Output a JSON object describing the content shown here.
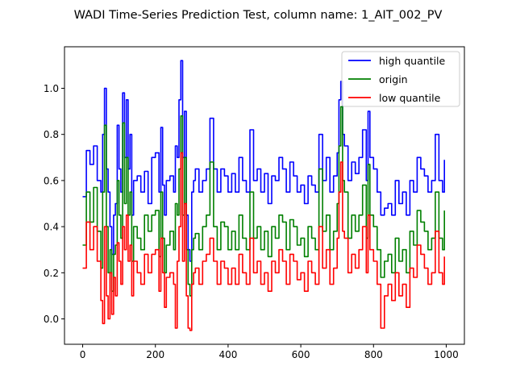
{
  "chart_data": {
    "type": "line",
    "title": "WADI Time-Series Prediction Test, column name: 1_AIT_002_PV",
    "xlabel": "",
    "ylabel": "",
    "xlim": [
      -50,
      1050
    ],
    "ylim": [
      -0.11,
      1.18
    ],
    "x_ticks": [
      0,
      200,
      400,
      600,
      800,
      1000
    ],
    "y_ticks": [
      0.0,
      0.2,
      0.4,
      0.6,
      0.8,
      1.0
    ],
    "x_tick_labels": [
      "0",
      "200",
      "400",
      "600",
      "800",
      "1000"
    ],
    "y_tick_labels": [
      "0.0",
      "0.2",
      "0.4",
      "0.6",
      "0.8",
      "1.0"
    ],
    "grid": false,
    "legend_position": "upper-right",
    "series": [
      {
        "name": "high quantile",
        "color": "#0000ff",
        "x": [
          0,
          10,
          20,
          30,
          40,
          50,
          55,
          60,
          65,
          70,
          75,
          80,
          85,
          90,
          95,
          100,
          105,
          110,
          115,
          120,
          125,
          130,
          135,
          140,
          150,
          160,
          170,
          180,
          190,
          200,
          210,
          215,
          220,
          225,
          230,
          240,
          250,
          255,
          260,
          265,
          270,
          275,
          280,
          285,
          290,
          295,
          300,
          305,
          310,
          320,
          330,
          340,
          350,
          360,
          370,
          380,
          390,
          400,
          410,
          420,
          430,
          440,
          450,
          460,
          470,
          480,
          490,
          500,
          510,
          520,
          530,
          540,
          550,
          560,
          570,
          580,
          590,
          600,
          610,
          620,
          630,
          640,
          650,
          660,
          670,
          680,
          690,
          700,
          705,
          710,
          715,
          720,
          730,
          740,
          750,
          760,
          770,
          780,
          785,
          790,
          800,
          810,
          820,
          830,
          840,
          850,
          860,
          870,
          880,
          890,
          900,
          910,
          920,
          930,
          940,
          950,
          960,
          970,
          980,
          990,
          995
        ],
        "y": [
          0.53,
          0.73,
          0.67,
          0.75,
          0.6,
          0.55,
          0.8,
          1.0,
          0.65,
          0.55,
          0.4,
          0.28,
          0.45,
          0.5,
          0.84,
          0.65,
          0.55,
          0.98,
          0.7,
          0.95,
          0.65,
          0.8,
          0.45,
          0.6,
          0.62,
          0.55,
          0.64,
          0.5,
          0.7,
          0.72,
          0.55,
          0.83,
          0.58,
          0.45,
          0.6,
          0.62,
          0.55,
          0.75,
          0.7,
          0.95,
          1.12,
          0.7,
          0.9,
          0.45,
          0.3,
          0.25,
          0.55,
          0.6,
          0.65,
          0.55,
          0.6,
          0.65,
          0.87,
          0.65,
          0.55,
          0.65,
          0.62,
          0.55,
          0.63,
          0.55,
          0.7,
          0.6,
          0.55,
          0.82,
          0.6,
          0.65,
          0.55,
          0.63,
          0.5,
          0.62,
          0.6,
          0.7,
          0.65,
          0.55,
          0.68,
          0.62,
          0.55,
          0.58,
          0.5,
          0.62,
          0.58,
          0.55,
          0.8,
          0.6,
          0.7,
          0.55,
          0.62,
          0.72,
          0.95,
          1.03,
          0.8,
          0.75,
          0.6,
          0.68,
          0.63,
          0.7,
          0.82,
          0.6,
          0.9,
          0.7,
          0.65,
          0.55,
          0.45,
          0.48,
          0.5,
          0.45,
          0.6,
          0.5,
          0.55,
          0.45,
          0.6,
          0.55,
          0.7,
          0.65,
          0.62,
          0.55,
          0.6,
          0.8,
          0.6,
          0.55,
          0.69
        ]
      },
      {
        "name": "origin",
        "color": "#008000",
        "x": [
          0,
          10,
          20,
          30,
          40,
          50,
          55,
          60,
          65,
          70,
          75,
          80,
          85,
          90,
          95,
          100,
          105,
          110,
          115,
          120,
          125,
          130,
          135,
          140,
          150,
          160,
          170,
          180,
          190,
          200,
          210,
          215,
          220,
          225,
          230,
          240,
          250,
          255,
          260,
          265,
          270,
          275,
          280,
          285,
          290,
          295,
          300,
          305,
          310,
          320,
          330,
          340,
          350,
          360,
          370,
          380,
          390,
          400,
          410,
          420,
          430,
          440,
          450,
          460,
          470,
          480,
          490,
          500,
          510,
          520,
          530,
          540,
          550,
          560,
          570,
          580,
          590,
          600,
          610,
          620,
          630,
          640,
          650,
          660,
          670,
          680,
          690,
          700,
          705,
          710,
          715,
          720,
          730,
          740,
          750,
          760,
          770,
          780,
          785,
          790,
          800,
          810,
          820,
          830,
          840,
          850,
          860,
          870,
          880,
          890,
          900,
          910,
          920,
          930,
          940,
          950,
          960,
          970,
          980,
          990,
          995
        ],
        "y": [
          0.32,
          0.55,
          0.42,
          0.57,
          0.38,
          0.22,
          0.55,
          0.84,
          0.4,
          0.2,
          0.3,
          0.12,
          0.28,
          0.32,
          0.6,
          0.45,
          0.35,
          0.85,
          0.5,
          0.7,
          0.45,
          0.55,
          0.25,
          0.4,
          0.35,
          0.3,
          0.45,
          0.38,
          0.45,
          0.47,
          0.27,
          0.55,
          0.35,
          0.2,
          0.32,
          0.38,
          0.3,
          0.5,
          0.45,
          0.65,
          0.88,
          0.45,
          0.7,
          0.3,
          0.15,
          0.1,
          0.3,
          0.35,
          0.37,
          0.3,
          0.4,
          0.45,
          0.68,
          0.4,
          0.3,
          0.42,
          0.4,
          0.3,
          0.38,
          0.3,
          0.45,
          0.35,
          0.3,
          0.55,
          0.35,
          0.4,
          0.3,
          0.38,
          0.27,
          0.4,
          0.35,
          0.45,
          0.42,
          0.3,
          0.43,
          0.4,
          0.32,
          0.35,
          0.27,
          0.4,
          0.35,
          0.3,
          0.65,
          0.38,
          0.45,
          0.3,
          0.38,
          0.5,
          0.75,
          0.92,
          0.6,
          0.55,
          0.35,
          0.45,
          0.38,
          0.45,
          0.58,
          0.35,
          0.67,
          0.45,
          0.4,
          0.3,
          0.18,
          0.25,
          0.28,
          0.2,
          0.35,
          0.25,
          0.3,
          0.2,
          0.38,
          0.32,
          0.47,
          0.42,
          0.38,
          0.3,
          0.35,
          0.55,
          0.35,
          0.3,
          0.47
        ]
      },
      {
        "name": "low quantile",
        "color": "#ff0000",
        "x": [
          0,
          10,
          20,
          30,
          40,
          50,
          55,
          60,
          65,
          70,
          75,
          80,
          85,
          90,
          95,
          100,
          105,
          110,
          115,
          120,
          125,
          130,
          135,
          140,
          150,
          160,
          170,
          180,
          190,
          200,
          210,
          215,
          220,
          225,
          230,
          240,
          250,
          255,
          260,
          265,
          270,
          275,
          280,
          285,
          290,
          295,
          300,
          305,
          310,
          320,
          330,
          340,
          350,
          360,
          370,
          380,
          390,
          400,
          410,
          420,
          430,
          440,
          450,
          460,
          470,
          480,
          490,
          500,
          510,
          520,
          530,
          540,
          550,
          560,
          570,
          580,
          590,
          600,
          610,
          620,
          630,
          640,
          650,
          660,
          670,
          680,
          690,
          700,
          705,
          710,
          715,
          720,
          730,
          740,
          750,
          760,
          770,
          780,
          785,
          790,
          800,
          810,
          820,
          830,
          840,
          850,
          860,
          870,
          880,
          890,
          900,
          910,
          920,
          930,
          940,
          950,
          960,
          970,
          980,
          990,
          995
        ],
        "y": [
          0.22,
          0.42,
          0.3,
          0.4,
          0.25,
          0.08,
          -0.02,
          0.4,
          0.1,
          0.0,
          0.2,
          0.02,
          0.18,
          0.1,
          0.33,
          0.25,
          0.15,
          0.4,
          0.3,
          0.45,
          0.25,
          0.32,
          0.1,
          0.25,
          0.2,
          0.15,
          0.28,
          0.2,
          0.28,
          0.3,
          0.12,
          0.35,
          0.2,
          0.05,
          0.18,
          0.2,
          0.15,
          -0.04,
          0.25,
          0.4,
          0.72,
          0.25,
          0.5,
          0.1,
          -0.04,
          -0.05,
          0.15,
          0.2,
          0.22,
          0.15,
          0.25,
          0.28,
          0.35,
          0.25,
          0.15,
          0.25,
          0.22,
          0.15,
          0.22,
          0.15,
          0.28,
          0.2,
          0.15,
          0.35,
          0.2,
          0.25,
          0.15,
          0.2,
          0.12,
          0.25,
          0.2,
          0.3,
          0.25,
          0.15,
          0.28,
          0.25,
          0.17,
          0.2,
          0.12,
          0.25,
          0.2,
          0.15,
          0.4,
          0.22,
          0.3,
          0.15,
          0.22,
          0.35,
          0.55,
          0.68,
          0.38,
          0.35,
          0.2,
          0.28,
          0.22,
          0.3,
          0.4,
          0.2,
          0.45,
          0.3,
          0.25,
          0.15,
          -0.04,
          0.1,
          0.15,
          0.08,
          0.2,
          0.1,
          0.15,
          0.05,
          0.22,
          0.18,
          0.32,
          0.28,
          0.22,
          0.15,
          0.2,
          0.38,
          0.2,
          0.15,
          0.27
        ]
      }
    ]
  }
}
